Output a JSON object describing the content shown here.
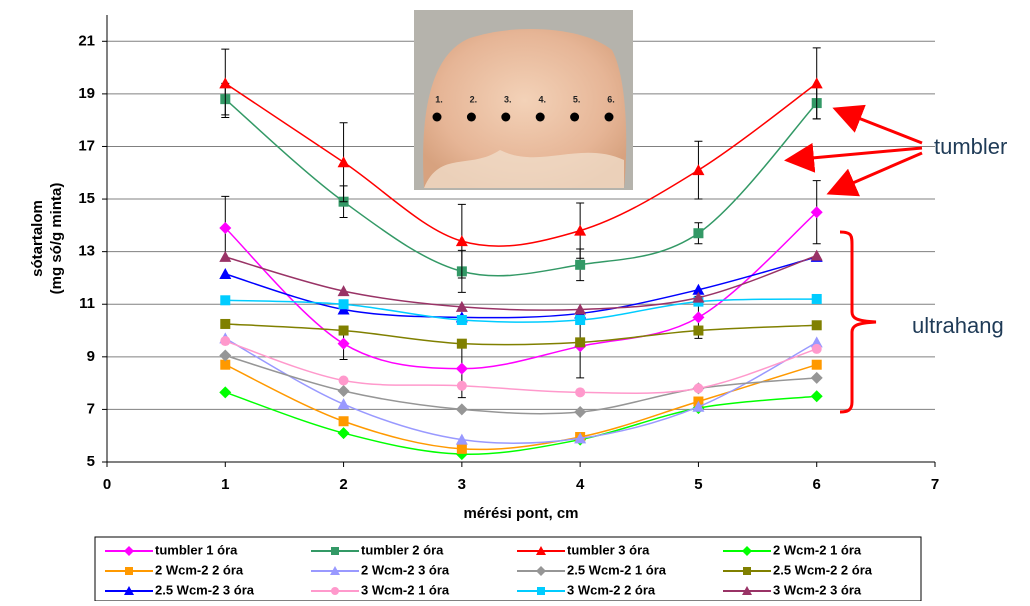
{
  "chart_data": {
    "type": "line",
    "xlabel": "mérési pont, cm",
    "ylabel": [
      "sótartalom",
      "(mg só/g minta)"
    ],
    "x": [
      1,
      2,
      3,
      4,
      5,
      6
    ],
    "xlim": [
      0,
      7
    ],
    "xticks": [
      0,
      1,
      2,
      3,
      4,
      5,
      6,
      7
    ],
    "ylim": [
      5,
      22
    ],
    "yticks": [
      5,
      7,
      9,
      11,
      13,
      15,
      17,
      19,
      21
    ],
    "grid": true,
    "smooth": true,
    "legend": "bottom",
    "series": [
      {
        "name": "tumbler 1 óra",
        "color": "#ff00ff",
        "marker": "diamond",
        "values": [
          13.9,
          9.5,
          8.55,
          9.4,
          10.5,
          14.5
        ],
        "errors": [
          1.2,
          0.6,
          1.1,
          1.2,
          0.8,
          1.2
        ]
      },
      {
        "name": "tumbler 2 óra",
        "color": "#339966",
        "marker": "square",
        "values": [
          18.8,
          14.9,
          12.25,
          12.5,
          13.7,
          18.65
        ],
        "errors": [
          0.6,
          0.6,
          0.8,
          0.6,
          0.4,
          0.6
        ]
      },
      {
        "name": "tumbler 3 óra",
        "color": "#ff0000",
        "marker": "triangle",
        "values": [
          19.4,
          16.4,
          13.4,
          13.8,
          16.1,
          19.4
        ],
        "errors": [
          1.3,
          1.5,
          1.4,
          1.05,
          1.1,
          1.35
        ]
      },
      {
        "name": "2 Wcm-2 1 óra",
        "color": "#00ff00",
        "marker": "diamond",
        "values": [
          7.65,
          6.1,
          5.3,
          5.85,
          7.05,
          7.5
        ]
      },
      {
        "name": "2 Wcm-2 2 óra",
        "color": "#ff9900",
        "marker": "square",
        "values": [
          8.7,
          6.55,
          5.5,
          5.95,
          7.3,
          8.7
        ]
      },
      {
        "name": "2 Wcm-2 3 óra",
        "color": "#9999ff",
        "marker": "triangle",
        "values": [
          9.7,
          7.2,
          5.85,
          5.9,
          7.1,
          9.55
        ]
      },
      {
        "name": "2.5 Wcm-2 1 óra",
        "color": "#969696",
        "marker": "diamond",
        "values": [
          9.05,
          7.7,
          7.0,
          6.9,
          7.8,
          8.2
        ]
      },
      {
        "name": "2.5 Wcm-2 2 óra",
        "color": "#808000",
        "marker": "square",
        "values": [
          10.25,
          10.0,
          9.5,
          9.55,
          10.0,
          10.2
        ]
      },
      {
        "name": "2.5 Wcm-2 3 óra",
        "color": "#0000ff",
        "marker": "triangle",
        "values": [
          12.15,
          10.8,
          10.5,
          10.65,
          11.55,
          12.8
        ]
      },
      {
        "name": "3 Wcm-2 1 óra",
        "color": "#ff99cc",
        "marker": "circle",
        "values": [
          9.6,
          8.1,
          7.9,
          7.65,
          7.8,
          9.3
        ]
      },
      {
        "name": "3 Wcm-2 2 óra",
        "color": "#00ccff",
        "marker": "square",
        "values": [
          11.15,
          11.0,
          10.4,
          10.4,
          11.1,
          11.2
        ]
      },
      {
        "name": "3 Wcm-2 3 óra",
        "color": "#993366",
        "marker": "triangle",
        "values": [
          12.8,
          11.5,
          10.9,
          10.8,
          11.25,
          12.85
        ]
      }
    ],
    "annotations": [
      "tumbler",
      "ultrahang"
    ],
    "photo_labels": [
      "1.",
      "2.",
      "3.",
      "4.",
      "5.",
      "6."
    ]
  }
}
